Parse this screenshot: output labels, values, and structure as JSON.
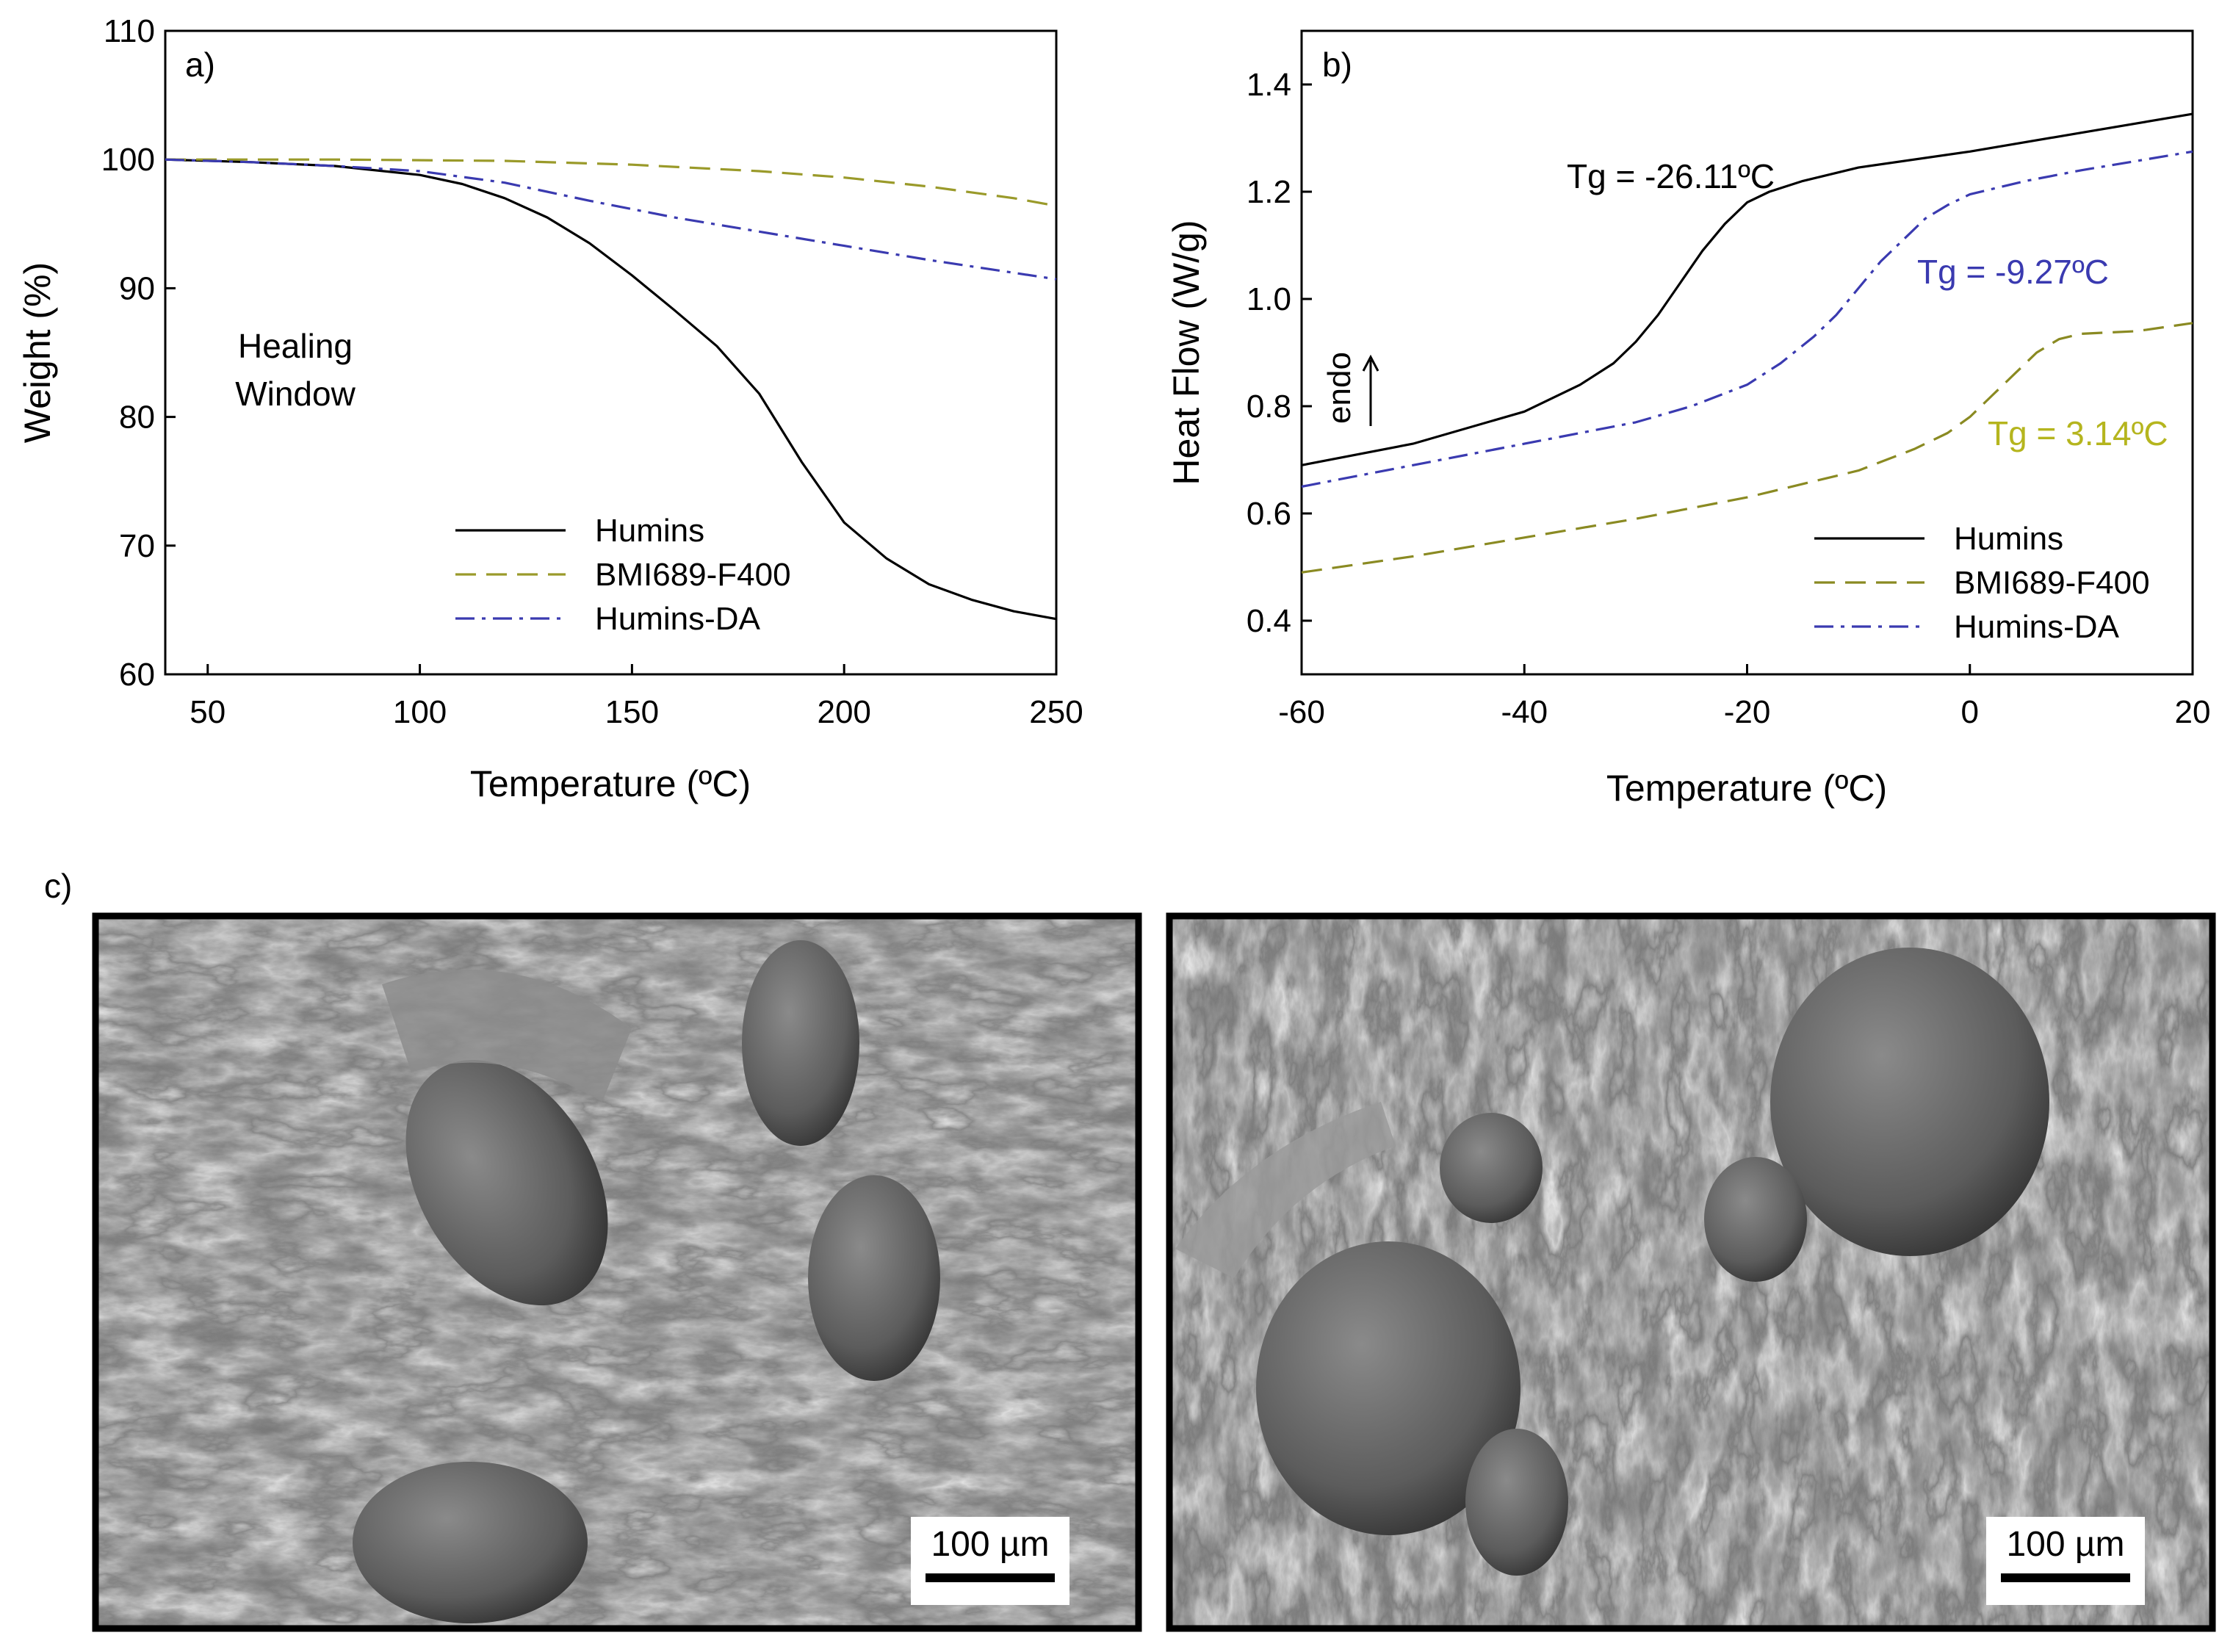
{
  "chart_data": [
    {
      "panel": "a)",
      "type": "line",
      "xlabel": "Temperature (ºC)",
      "ylabel": "Weight (%)",
      "xlim": [
        40,
        250
      ],
      "ylim": [
        60,
        110
      ],
      "xticks": [
        50,
        100,
        150,
        200,
        250
      ],
      "yticks": [
        60,
        70,
        80,
        90,
        100,
        110
      ],
      "annotation": "Healing Window",
      "legend_position": "bottom-center",
      "grid": false,
      "series": [
        {
          "name": "Humins",
          "color": "#000000",
          "dash": "solid",
          "x": [
            40,
            60,
            80,
            100,
            110,
            120,
            130,
            140,
            150,
            160,
            170,
            180,
            190,
            200,
            210,
            220,
            230,
            240,
            250
          ],
          "y": [
            100,
            99.8,
            99.5,
            98.8,
            98.1,
            97.0,
            95.5,
            93.5,
            91.0,
            88.3,
            85.5,
            81.8,
            76.5,
            71.8,
            69.0,
            67.0,
            65.8,
            64.9,
            64.3
          ]
        },
        {
          "name": "BMI689-F400",
          "color": "#9a9a2a",
          "dash": "long-dash",
          "x": [
            40,
            80,
            120,
            150,
            180,
            200,
            220,
            240,
            250
          ],
          "y": [
            100,
            100,
            99.9,
            99.6,
            99.1,
            98.6,
            97.9,
            97.0,
            96.4
          ]
        },
        {
          "name": "Humins-DA",
          "color": "#3a3ab0",
          "dash": "dash-dot",
          "x": [
            40,
            60,
            80,
            100,
            120,
            140,
            160,
            180,
            200,
            220,
            240,
            250
          ],
          "y": [
            100,
            99.8,
            99.5,
            99.1,
            98.2,
            96.8,
            95.5,
            94.4,
            93.3,
            92.2,
            91.2,
            90.7
          ]
        }
      ]
    },
    {
      "panel": "b)",
      "type": "line",
      "xlabel": "Temperature (ºC)",
      "ylabel": "Heat Flow (W/g)",
      "xlim": [
        -60,
        20
      ],
      "ylim": [
        0.3,
        1.5
      ],
      "xticks": [
        -60,
        -40,
        -20,
        0,
        20
      ],
      "yticks": [
        0.4,
        0.6,
        0.8,
        1.0,
        1.2,
        1.4
      ],
      "endo_label": "endo",
      "legend_position": "bottom-right",
      "grid": false,
      "annotations": [
        {
          "text": "Tg = -26.11ºC",
          "color": "#000000"
        },
        {
          "text": "Tg = -9.27ºC",
          "color": "#3a3ab0"
        },
        {
          "text": "Tg = 3.14ºC",
          "color": "#b5b51e"
        }
      ],
      "series": [
        {
          "name": "Humins",
          "color": "#000000",
          "dash": "solid",
          "x": [
            -60,
            -50,
            -40,
            -35,
            -32,
            -30,
            -28,
            -26,
            -24,
            -22,
            -20,
            -18,
            -15,
            -10,
            0,
            10,
            20
          ],
          "y": [
            0.69,
            0.73,
            0.79,
            0.84,
            0.88,
            0.92,
            0.97,
            1.03,
            1.09,
            1.14,
            1.18,
            1.2,
            1.22,
            1.245,
            1.275,
            1.31,
            1.345
          ]
        },
        {
          "name": "BMI689-F400",
          "color": "#8a8a22",
          "dash": "long-dash",
          "x": [
            -60,
            -50,
            -40,
            -30,
            -20,
            -10,
            -5,
            -2,
            0,
            2,
            4,
            6,
            8,
            10,
            15,
            20
          ],
          "y": [
            0.49,
            0.52,
            0.555,
            0.59,
            0.63,
            0.68,
            0.72,
            0.75,
            0.78,
            0.82,
            0.86,
            0.9,
            0.925,
            0.935,
            0.94,
            0.955
          ]
        },
        {
          "name": "Humins-DA",
          "color": "#3a3ab0",
          "dash": "dash-dot",
          "x": [
            -60,
            -50,
            -40,
            -30,
            -25,
            -20,
            -17,
            -14,
            -12,
            -10,
            -8,
            -6,
            -4,
            -2,
            0,
            5,
            10,
            20
          ],
          "y": [
            0.65,
            0.69,
            0.73,
            0.77,
            0.8,
            0.84,
            0.88,
            0.93,
            0.97,
            1.02,
            1.07,
            1.11,
            1.15,
            1.175,
            1.195,
            1.22,
            1.24,
            1.275
          ]
        }
      ]
    }
  ],
  "panel_c": {
    "label": "c)",
    "images": [
      {
        "scale_bar": "100 µm"
      },
      {
        "scale_bar": "100 µm"
      }
    ]
  }
}
